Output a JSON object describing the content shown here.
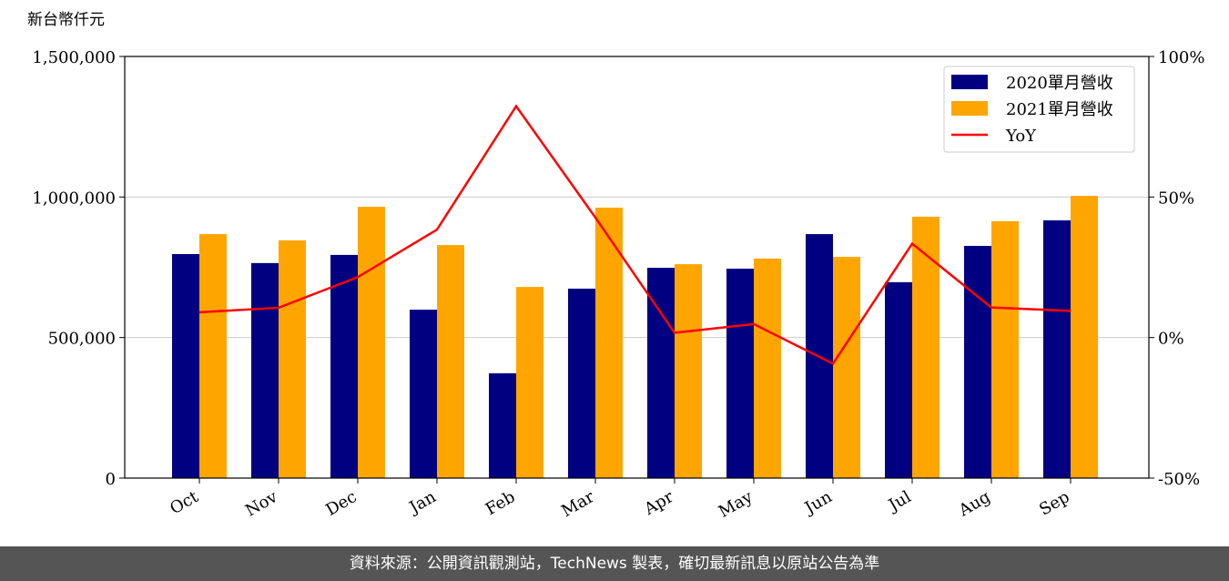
{
  "chart_data": {
    "type": "bar",
    "y_label": "新台幣仟元",
    "categories": [
      "Oct",
      "Nov",
      "Dec",
      "Jan",
      "Feb",
      "Mar",
      "Apr",
      "May",
      "Jun",
      "Jul",
      "Aug",
      "Sep"
    ],
    "series": [
      {
        "name": "2020單月營收",
        "color": "#000080",
        "values": [
          797000,
          765000,
          794000,
          599000,
          373000,
          674000,
          748000,
          745000,
          868000,
          697000,
          826000,
          917000
        ]
      },
      {
        "name": "2021單月營收",
        "color": "#ffa500",
        "values": [
          868000,
          846000,
          965000,
          829000,
          680000,
          962000,
          761000,
          781000,
          787000,
          930000,
          914000,
          1004000
        ]
      },
      {
        "name": "YoY",
        "color": "#ff0000",
        "type": "line",
        "axis": "y2",
        "values": [
          9,
          10.6,
          21.5,
          38.4,
          82.3,
          42.7,
          1.7,
          4.8,
          -9.3,
          33.4,
          10.7,
          9.5
        ]
      }
    ],
    "ylim": [
      0,
      1500000
    ],
    "yticks": [
      0,
      {
        "value": 500000,
        "label": "500,000"
      },
      {
        "value": 1000000,
        "label": "1,000,000"
      },
      {
        "value": 1500000,
        "label": "1,500,000"
      }
    ],
    "y2lim": [
      -50,
      100
    ],
    "y2ticks": [
      {
        "value": -50,
        "label": "-50%"
      },
      {
        "value": 0,
        "label": "0%"
      },
      {
        "value": 50,
        "label": "50%"
      },
      {
        "value": 100,
        "label": "100%"
      }
    ],
    "grid": true,
    "legend": "upper right"
  },
  "footer": "資料來源：公開資訊觀測站，TechNews 製表，確切最新訊息以原站公告為準"
}
